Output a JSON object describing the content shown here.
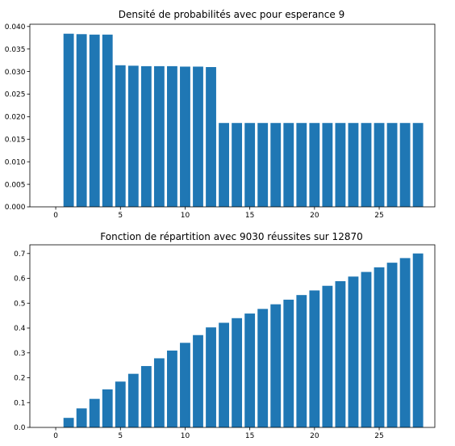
{
  "chart_data": [
    {
      "type": "bar",
      "title": "Densité de probabilités avec pour esperance 9",
      "xlabel": "",
      "ylabel": "",
      "color": "#1f77b4",
      "grid": false,
      "xlim": [
        -2,
        29.3
      ],
      "ylim": [
        0,
        0.0405
      ],
      "x": [
        1,
        2,
        3,
        4,
        5,
        6,
        7,
        8,
        9,
        10,
        11,
        12,
        13,
        14,
        15,
        16,
        17,
        18,
        19,
        20,
        21,
        22,
        23,
        24,
        25,
        26,
        27,
        28
      ],
      "values": [
        0.0384,
        0.0383,
        0.0382,
        0.0382,
        0.0314,
        0.0313,
        0.0312,
        0.0312,
        0.0312,
        0.0311,
        0.0311,
        0.031,
        0.0186,
        0.0186,
        0.0186,
        0.0186,
        0.0186,
        0.0186,
        0.0186,
        0.0186,
        0.0186,
        0.0186,
        0.0186,
        0.0186,
        0.0186,
        0.0186,
        0.0186,
        0.0186
      ],
      "xticks": [
        0,
        5,
        10,
        15,
        20,
        25
      ],
      "xtick_labels": [
        "0",
        "5",
        "10",
        "15",
        "20",
        "25"
      ],
      "yticks": [
        0,
        0.005,
        0.01,
        0.015,
        0.02,
        0.025,
        0.03,
        0.035,
        0.04
      ],
      "ytick_labels": [
        "0.000",
        "0.005",
        "0.010",
        "0.015",
        "0.020",
        "0.025",
        "0.030",
        "0.035",
        "0.040"
      ]
    },
    {
      "type": "bar",
      "title": "Fonction de répartition avec 9030 réussites sur 12870",
      "xlabel": "",
      "ylabel": "",
      "color": "#1f77b4",
      "grid": false,
      "xlim": [
        -2,
        29.3
      ],
      "ylim": [
        0,
        0.735
      ],
      "x": [
        1,
        2,
        3,
        4,
        5,
        6,
        7,
        8,
        9,
        10,
        11,
        12,
        13,
        14,
        15,
        16,
        17,
        18,
        19,
        20,
        21,
        22,
        23,
        24,
        25,
        26,
        27,
        28
      ],
      "values": [
        0.0384,
        0.0767,
        0.1149,
        0.1531,
        0.1845,
        0.2158,
        0.247,
        0.2782,
        0.3094,
        0.3405,
        0.3716,
        0.4026,
        0.4212,
        0.4398,
        0.4584,
        0.477,
        0.4956,
        0.5142,
        0.5328,
        0.5514,
        0.57,
        0.5886,
        0.6072,
        0.6258,
        0.6444,
        0.663,
        0.6816,
        0.7002
      ],
      "xticks": [
        0,
        5,
        10,
        15,
        20,
        25
      ],
      "xtick_labels": [
        "0",
        "5",
        "10",
        "15",
        "20",
        "25"
      ],
      "yticks": [
        0,
        0.1,
        0.2,
        0.3,
        0.4,
        0.5,
        0.6,
        0.7
      ],
      "ytick_labels": [
        "0.0",
        "0.1",
        "0.2",
        "0.3",
        "0.4",
        "0.5",
        "0.6",
        "0.7"
      ]
    }
  ]
}
